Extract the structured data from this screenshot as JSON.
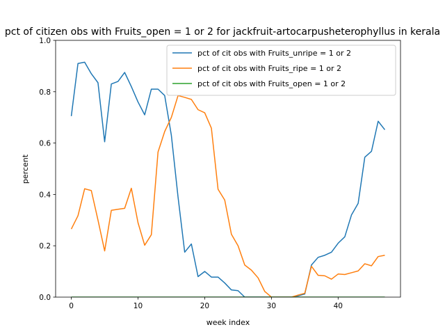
{
  "chart_data": {
    "type": "line",
    "title": "pct of citizen obs with Fruits_open = 1 or 2 for jackfruit-artocarpusheterophyllus in kerala",
    "xlabel": "week index",
    "ylabel": "percent",
    "xlim": [
      -2.35,
      49.35
    ],
    "ylim": [
      0,
      1.0
    ],
    "xticks": [
      0,
      10,
      20,
      30,
      40
    ],
    "yticks": [
      0.0,
      0.2,
      0.4,
      0.6,
      0.8,
      1.0
    ],
    "ytick_labels": [
      "0.0",
      "0.2",
      "0.4",
      "0.6",
      "0.8",
      "1.0"
    ],
    "grid": false,
    "legend_position": "top-right",
    "x": [
      0,
      1,
      2,
      3,
      4,
      5,
      6,
      7,
      8,
      9,
      10,
      11,
      12,
      13,
      14,
      15,
      16,
      17,
      18,
      19,
      20,
      21,
      22,
      23,
      24,
      25,
      26,
      27,
      28,
      29,
      30,
      31,
      32,
      33,
      34,
      35,
      36,
      37,
      38,
      39,
      40,
      41,
      42,
      43,
      44,
      45,
      46,
      47
    ],
    "series": [
      {
        "name": "pct of cit obs with Fruits_unripe = 1 or 2",
        "color": "#1f77b4",
        "values": [
          0.705,
          0.91,
          0.915,
          0.87,
          0.835,
          0.605,
          0.83,
          0.84,
          0.875,
          0.82,
          0.76,
          0.71,
          0.81,
          0.81,
          0.785,
          0.63,
          0.39,
          0.175,
          0.207,
          0.08,
          0.1,
          0.078,
          0.078,
          0.055,
          0.028,
          0.025,
          0.0,
          0.0,
          0.0,
          0.0,
          0.0,
          0.0,
          0.0,
          0.0,
          0.005,
          0.012,
          0.125,
          0.155,
          0.163,
          0.175,
          0.21,
          0.235,
          0.32,
          0.365,
          0.545,
          0.568,
          0.685,
          0.652
        ]
      },
      {
        "name": "pct of cit obs with Fruits_ripe = 1 or 2",
        "color": "#ff7f0e",
        "values": [
          0.265,
          0.317,
          0.422,
          0.415,
          0.3,
          0.18,
          0.338,
          0.342,
          0.346,
          0.424,
          0.29,
          0.202,
          0.243,
          0.565,
          0.645,
          0.7,
          0.785,
          0.778,
          0.77,
          0.73,
          0.718,
          0.658,
          0.42,
          0.378,
          0.245,
          0.2,
          0.125,
          0.105,
          0.075,
          0.022,
          0.0,
          0.0,
          0.0,
          0.0,
          0.008,
          0.015,
          0.12,
          0.085,
          0.083,
          0.07,
          0.09,
          0.088,
          0.095,
          0.102,
          0.13,
          0.122,
          0.158,
          0.163
        ]
      },
      {
        "name": "pct of cit obs with Fruits_open = 1 or 2",
        "color": "#2ca02c",
        "values": [
          0,
          0,
          0,
          0,
          0,
          0,
          0,
          0,
          0,
          0,
          0,
          0,
          0,
          0,
          0,
          0,
          0,
          0,
          0,
          0,
          0,
          0,
          0,
          0,
          0,
          0,
          0,
          0,
          0,
          0,
          0,
          0,
          0,
          0,
          0,
          0,
          0,
          0,
          0,
          0,
          0,
          0,
          0,
          0,
          0,
          0,
          0,
          0
        ]
      }
    ]
  }
}
